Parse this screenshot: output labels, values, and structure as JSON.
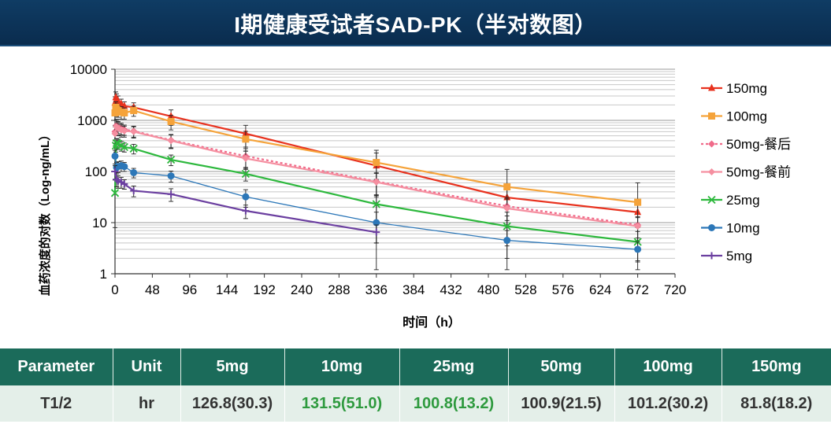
{
  "header": {
    "title": "I期健康受试者SAD-PK（半对数图）"
  },
  "colors": {
    "header_bg": "#0c3559",
    "table_header_bg": "#1b6b5a",
    "table_row_bg": "#e4efe9",
    "highlight_text": "#2e9a3e"
  },
  "chart_data": {
    "type": "line",
    "scale": "log",
    "xlabel": "时间（h）",
    "ylabel": "血药浓度的对数（Log-ng/mL）",
    "xlim": [
      0,
      720
    ],
    "ylim": [
      1,
      10000
    ],
    "x_ticks": [
      0,
      48,
      96,
      144,
      192,
      240,
      288,
      336,
      384,
      432,
      480,
      528,
      576,
      624,
      672,
      720
    ],
    "y_ticks": [
      1,
      10,
      100,
      1000,
      10000
    ],
    "y_tick_labels": [
      "1",
      "10",
      "100",
      "1000",
      "10000"
    ],
    "grid": "horizontal minor (log)",
    "legend_position": "right",
    "series": [
      {
        "name": "150mg",
        "color": "#e8321e",
        "marker": "triangle",
        "dash": false,
        "x": [
          0,
          1,
          2,
          4,
          8,
          12,
          24,
          72,
          168,
          336,
          504,
          672
        ],
        "y": [
          2200,
          2800,
          2600,
          2400,
          2100,
          1900,
          1800,
          1200,
          550,
          130,
          31,
          16
        ],
        "err": [
          700,
          800,
          700,
          600,
          500,
          400,
          400,
          400,
          250,
          130,
          15,
          8
        ]
      },
      {
        "name": "100mg",
        "color": "#f5a33a",
        "marker": "square",
        "dash": false,
        "x": [
          0,
          1,
          2,
          4,
          8,
          12,
          24,
          72,
          168,
          336,
          504,
          672
        ],
        "y": [
          1400,
          1800,
          1650,
          1550,
          1450,
          1400,
          1550,
          950,
          430,
          150,
          50,
          25
        ],
        "err": [
          400,
          500,
          450,
          400,
          400,
          350,
          350,
          300,
          180,
          80,
          60,
          35
        ]
      },
      {
        "name": "50mg-餐后",
        "color": "#f06b8a",
        "marker": "diamond",
        "dash": true,
        "x": [
          0,
          2,
          4,
          8,
          12,
          24,
          72,
          168,
          336,
          504,
          672
        ],
        "y": [
          600,
          800,
          750,
          700,
          660,
          620,
          410,
          200,
          64,
          21,
          9
        ],
        "err": [
          200,
          250,
          200,
          180,
          150,
          150,
          120,
          80,
          30,
          10,
          4
        ]
      },
      {
        "name": "50mg-餐前",
        "color": "#f58fa0",
        "marker": "diamond",
        "dash": false,
        "x": [
          0,
          2,
          4,
          8,
          12,
          24,
          72,
          168,
          336,
          504,
          672
        ],
        "y": [
          550,
          750,
          700,
          650,
          620,
          600,
          400,
          180,
          62,
          19,
          8.5
        ],
        "err": [
          200,
          250,
          200,
          180,
          150,
          150,
          120,
          70,
          30,
          10,
          4
        ]
      },
      {
        "name": "25mg",
        "color": "#2db83d",
        "marker": "x",
        "dash": false,
        "x": [
          0,
          1,
          2,
          4,
          8,
          12,
          24,
          72,
          168,
          336,
          504,
          672
        ],
        "y": [
          38,
          320,
          360,
          350,
          320,
          300,
          280,
          170,
          90,
          23,
          8.5,
          4.2
        ],
        "err": [
          30,
          80,
          80,
          80,
          70,
          60,
          60,
          40,
          25,
          12,
          5,
          2.5
        ]
      },
      {
        "name": "10mg",
        "color": "#2c77b8",
        "marker": "circle",
        "dash": false,
        "x": [
          0,
          2,
          4,
          8,
          12,
          24,
          72,
          168,
          336,
          504,
          672
        ],
        "y": [
          200,
          120,
          125,
          130,
          125,
          95,
          82,
          32,
          10,
          4.5,
          3
        ],
        "err": [
          60,
          30,
          30,
          30,
          25,
          20,
          20,
          12,
          6,
          2.5,
          1.2
        ]
      },
      {
        "name": "5mg",
        "color": "#6b3fa0",
        "marker": "plus",
        "dash": false,
        "x": [
          0,
          2,
          4,
          8,
          12,
          24,
          72,
          168,
          336
        ],
        "y": [
          100,
          70,
          65,
          62,
          57,
          42,
          36,
          17,
          6.5
        ],
        "err": [
          30,
          20,
          18,
          15,
          12,
          10,
          10,
          5,
          2.5
        ]
      }
    ]
  },
  "table": {
    "headers": [
      "Parameter",
      "Unit",
      "5mg",
      "10mg",
      "25mg",
      "50mg",
      "100mg",
      "150mg"
    ],
    "rows": [
      [
        "T1/2",
        "hr",
        "126.8(30.3)",
        "131.5(51.0)",
        "100.8(13.2)",
        "100.9(21.5)",
        "101.2(30.2)",
        "81.8(18.2)"
      ]
    ],
    "highlight_cells": [
      3,
      4
    ]
  }
}
